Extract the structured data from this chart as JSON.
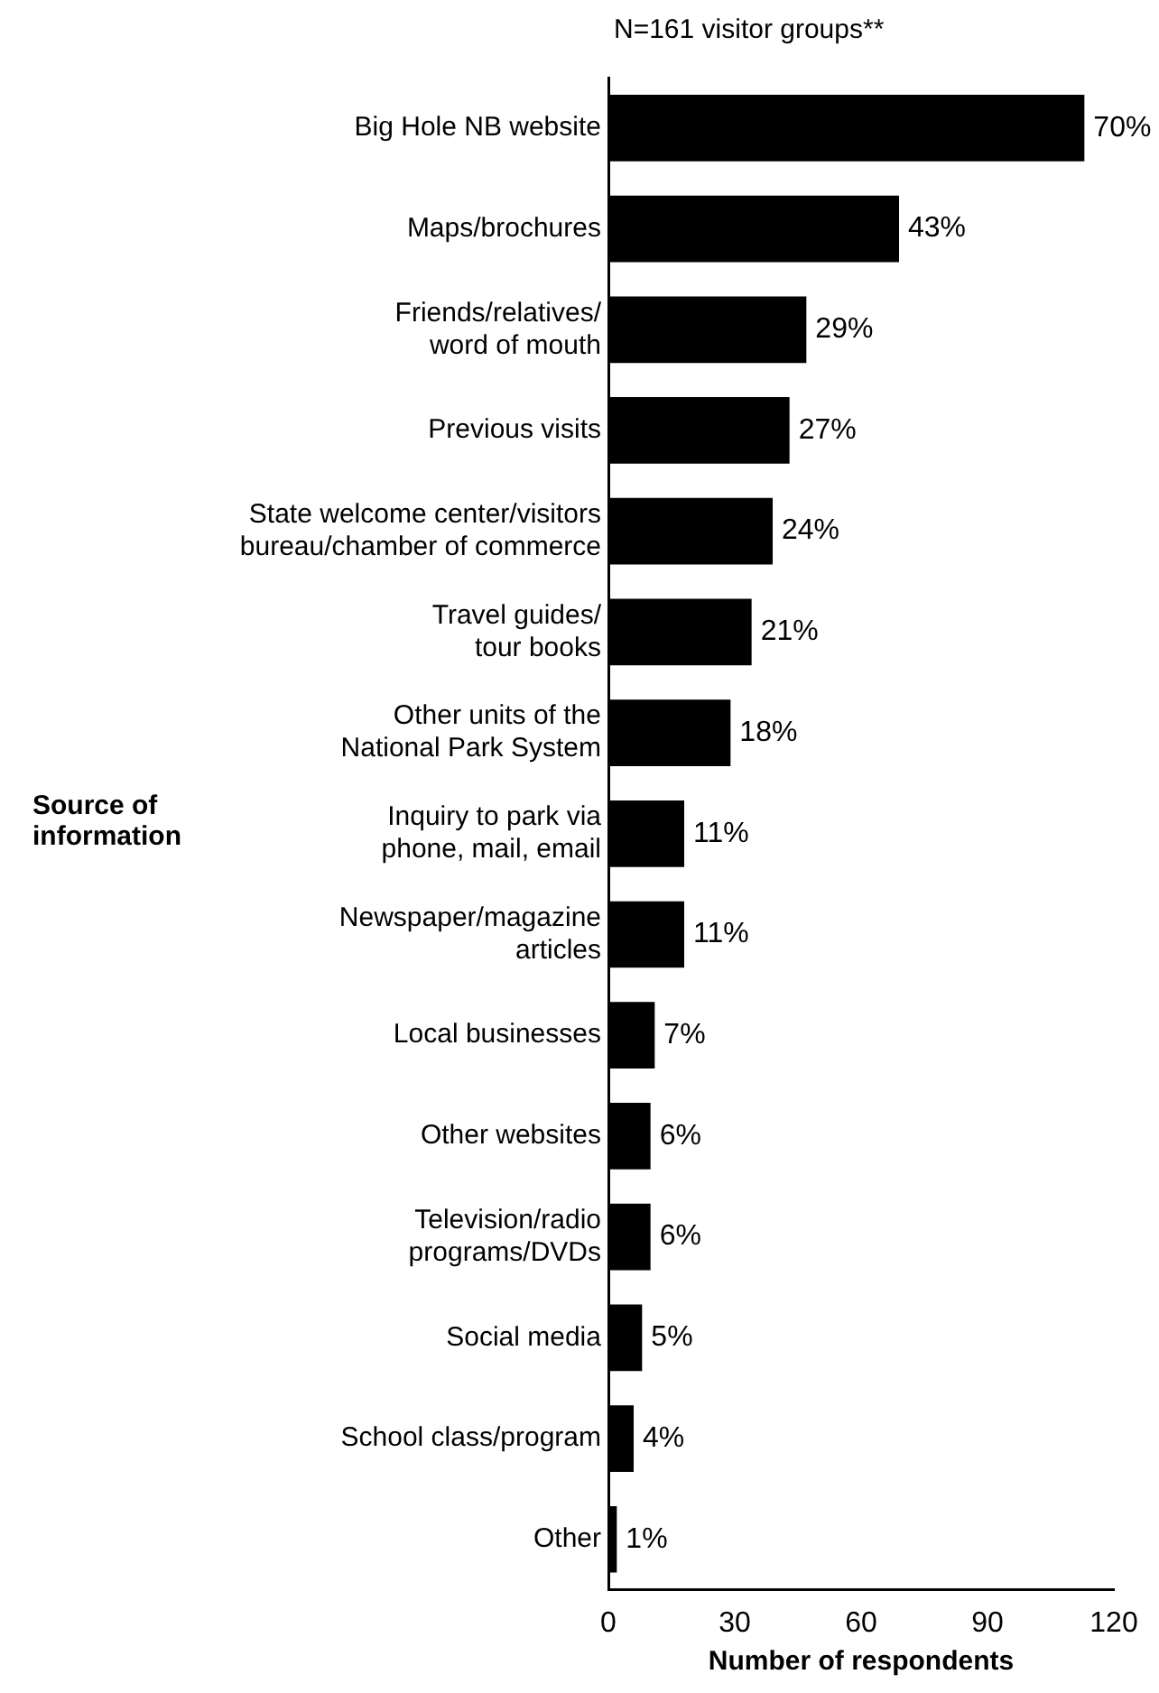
{
  "chart_data": {
    "type": "bar",
    "orientation": "horizontal",
    "title": "N=161 visitor groups**",
    "ylabel": "Source of information",
    "xlabel": "Number of respondents",
    "categories": [
      "Big Hole NB website",
      "Maps/brochures",
      "Friends/relatives/\nword of mouth",
      "Previous visits",
      "State welcome center/visitors\nbureau/chamber of commerce",
      "Travel guides/\ntour books",
      "Other units of the\nNational Park System",
      "Inquiry to park via\nphone, mail, email",
      "Newspaper/magazine\narticles",
      "Local businesses",
      "Other websites",
      "Television/radio\nprograms/DVDs",
      "Social media",
      "School class/program",
      "Other"
    ],
    "values": [
      113,
      69,
      47,
      43,
      39,
      34,
      29,
      18,
      18,
      11,
      10,
      10,
      8,
      6,
      2
    ],
    "annotations": [
      {
        "text": "70%",
        "x": 113,
        "y": "Big Hole NB website"
      },
      {
        "text": "43%",
        "x": 69,
        "y": "Maps/brochures"
      },
      {
        "text": "29%",
        "x": 47,
        "y": "Friends/relatives/\nword of mouth"
      },
      {
        "text": "27%",
        "x": 43,
        "y": "Previous visits"
      },
      {
        "text": "24%",
        "x": 39,
        "y": "State welcome center/visitors\nbureau/chamber of commerce"
      },
      {
        "text": "21%",
        "x": 34,
        "y": "Travel guides/\ntour books"
      },
      {
        "text": "18%",
        "x": 29,
        "y": "Other units of the\nNational Park System"
      },
      {
        "text": "11%",
        "x": 18,
        "y": "Inquiry to park via\nphone, mail, email"
      },
      {
        "text": "11%",
        "x": 18,
        "y": "Newspaper/magazine\narticles"
      },
      {
        "text": "7%",
        "x": 11,
        "y": "Local businesses"
      },
      {
        "text": "6%",
        "x": 10,
        "y": "Other websites"
      },
      {
        "text": "6%",
        "x": 10,
        "y": "Television/radio\nprograms/DVDs"
      },
      {
        "text": "5%",
        "x": 8,
        "y": "Social media"
      },
      {
        "text": "4%",
        "x": 6,
        "y": "School class/program"
      },
      {
        "text": "1%",
        "x": 2,
        "y": "Other"
      }
    ],
    "color": "#000000",
    "xlim": [
      0,
      120
    ],
    "xticks": [
      0,
      30,
      60,
      90,
      120
    ],
    "grid": false,
    "legend": false
  }
}
